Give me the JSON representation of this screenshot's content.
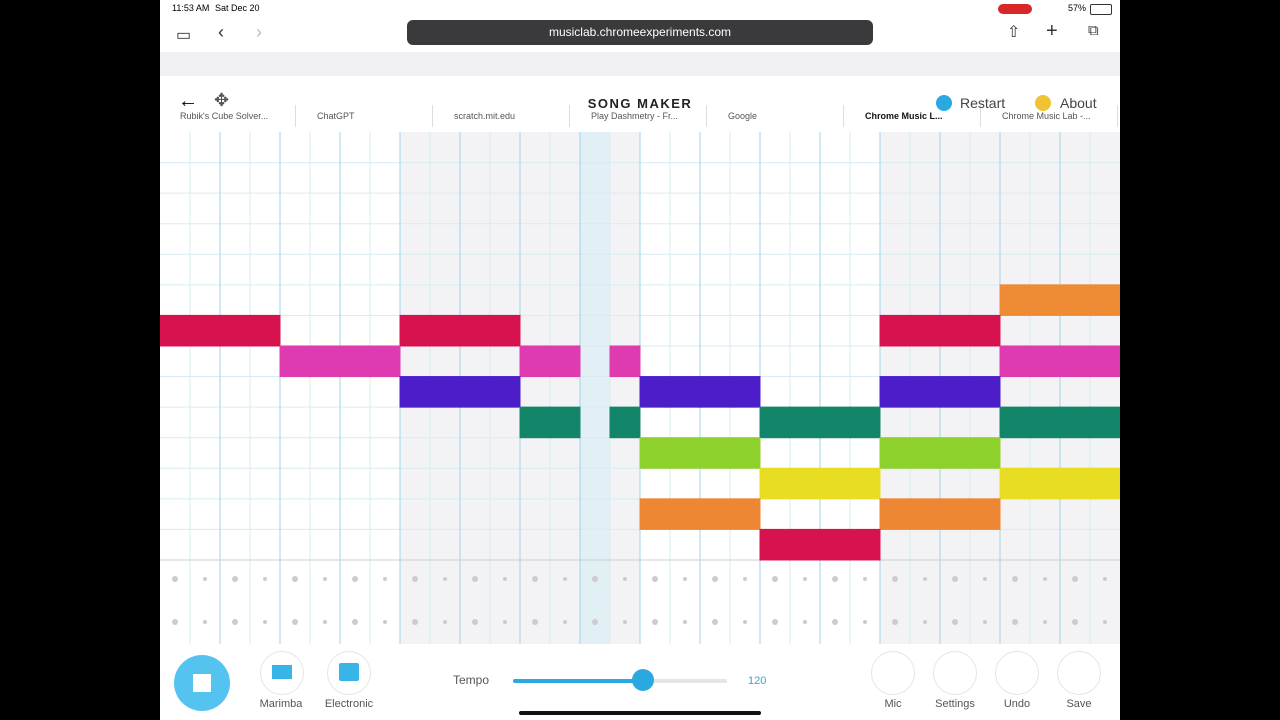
{
  "status_bar": {
    "time": "11:53 AM",
    "date": "Sat Dec 20",
    "battery": "57%"
  },
  "address_bar": {
    "url": "musiclab.chromeexperiments.com"
  },
  "tabs": [
    "Rubik's Cube Solver...",
    "ChatGPT",
    "scratch.mit.edu",
    "Play Dashmetry - Fr...",
    "Google",
    "Chrome Music L...",
    "Chrome Music Lab -..."
  ],
  "app": {
    "title": "SONG MAKER",
    "restart": "Restart",
    "about": "About"
  },
  "controls": {
    "instruments": [
      "Marimba",
      "Electronic"
    ],
    "tempo_label": "Tempo",
    "tempo_value": "120",
    "actions": [
      "Mic",
      "Settings",
      "Undo",
      "Save"
    ]
  }
}
